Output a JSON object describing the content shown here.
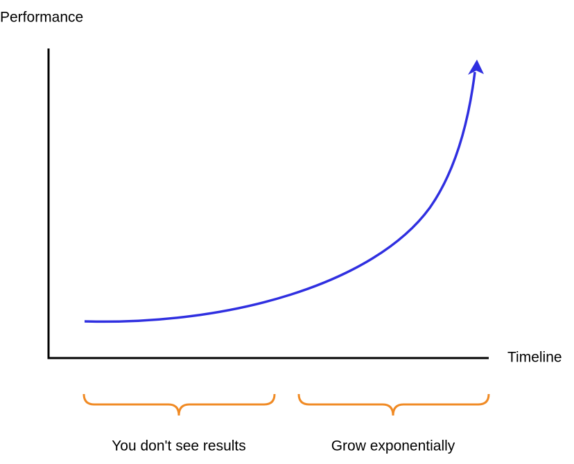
{
  "axes": {
    "y_label": "Performance",
    "x_label": "Timeline"
  },
  "phases": [
    {
      "label": "You don't see results"
    },
    {
      "label": "Grow exponentially"
    }
  ]
}
